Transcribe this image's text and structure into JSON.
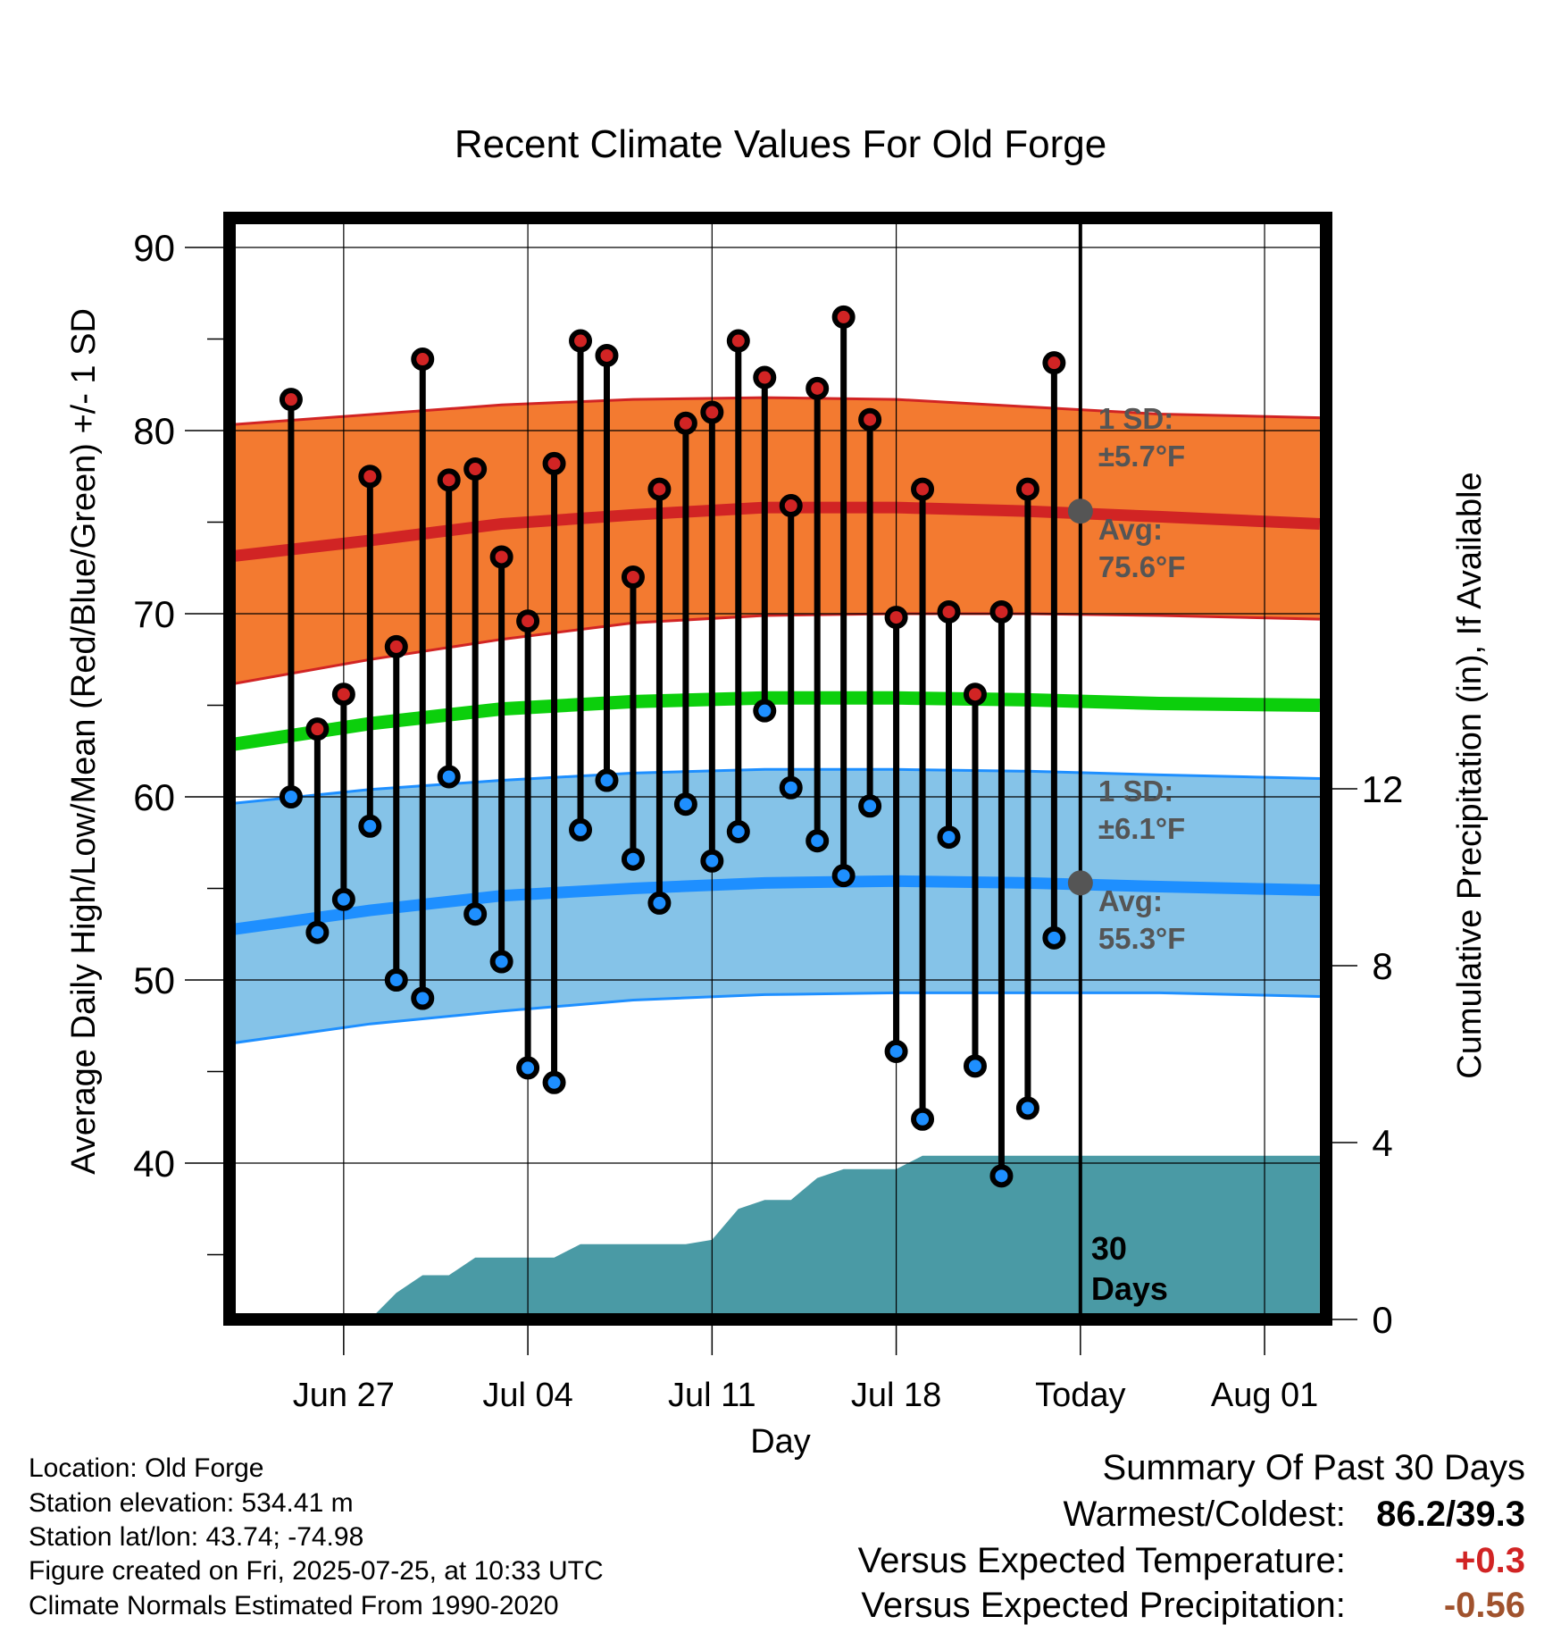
{
  "chart_data": {
    "type": "line",
    "title": "Recent Climate Values For Old Forge",
    "xlabel": "Day",
    "ylabel": "Average Daily High/Low/Mean (Red/Blue/Green) +/- 1 SD",
    "y2label": "Cumulative Precipitation (in), If Available",
    "ylim": [
      31,
      91.5
    ],
    "y2lim": [
      0,
      20
    ],
    "yticks": [
      40,
      50,
      60,
      70,
      80,
      90
    ],
    "y2ticks": [
      0,
      4,
      8,
      12
    ],
    "xlim": [
      "2025-06-23",
      "2025-08-03"
    ],
    "xticks": [
      {
        "date": "2025-06-27",
        "label": "Jun 27"
      },
      {
        "date": "2025-07-04",
        "label": "Jul 04"
      },
      {
        "date": "2025-07-11",
        "label": "Jul 11"
      },
      {
        "date": "2025-07-18",
        "label": "Jul 18"
      },
      {
        "date": "2025-07-25",
        "label": "Today"
      },
      {
        "date": "2025-08-01",
        "label": "Aug 01"
      }
    ],
    "grid": true,
    "today": "2025-07-25",
    "today_label": "30 Days",
    "dates": [
      "2025-06-24",
      "2025-06-25",
      "2025-06-26",
      "2025-06-27",
      "2025-06-28",
      "2025-06-29",
      "2025-06-30",
      "2025-07-01",
      "2025-07-02",
      "2025-07-03",
      "2025-07-04",
      "2025-07-05",
      "2025-07-06",
      "2025-07-07",
      "2025-07-08",
      "2025-07-09",
      "2025-07-10",
      "2025-07-11",
      "2025-07-12",
      "2025-07-13",
      "2025-07-14",
      "2025-07-15",
      "2025-07-16",
      "2025-07-17",
      "2025-07-18",
      "2025-07-19",
      "2025-07-20",
      "2025-07-21",
      "2025-07-22",
      "2025-07-23",
      "2025-07-24"
    ],
    "series": [
      {
        "name": "High",
        "color": "#cc2020",
        "values": [
          null,
          81.7,
          63.7,
          65.6,
          77.5,
          68.2,
          83.9,
          77.3,
          77.9,
          73.1,
          69.6,
          78.2,
          84.9,
          84.1,
          72.0,
          76.8,
          80.4,
          81.0,
          84.9,
          82.9,
          75.9,
          82.3,
          86.2,
          80.6,
          69.8,
          76.8,
          70.1,
          65.6,
          70.1,
          76.8,
          83.7
        ]
      },
      {
        "name": "Low",
        "color": "#1e8fff",
        "values": [
          null,
          60.0,
          52.6,
          54.4,
          58.4,
          50.0,
          49.0,
          61.1,
          53.6,
          51.0,
          45.2,
          44.4,
          58.2,
          60.9,
          56.6,
          54.2,
          59.6,
          56.5,
          58.1,
          64.7,
          60.5,
          57.6,
          55.7,
          59.5,
          46.1,
          42.4,
          57.8,
          45.3,
          39.3,
          43.0,
          52.3
        ]
      },
      {
        "name": "Precipitation",
        "color": "#4a9aa5",
        "values": [
          0,
          0,
          0,
          0,
          0,
          0.6,
          1.0,
          1.0,
          1.4,
          1.4,
          1.4,
          1.4,
          1.7,
          1.7,
          1.7,
          1.7,
          1.7,
          1.8,
          2.5,
          2.7,
          2.7,
          3.2,
          3.4,
          3.4,
          3.4,
          3.7,
          3.7,
          3.7,
          3.7,
          3.7,
          3.7
        ]
      }
    ],
    "normals": {
      "x": [
        -0.5,
        41.1
      ],
      "high_avg": [
        [
          -0.5,
          73.1
        ],
        [
          5,
          74.0
        ],
        [
          10,
          74.9
        ],
        [
          15,
          75.4
        ],
        [
          20,
          75.8
        ],
        [
          25,
          75.8
        ],
        [
          30,
          75.6
        ],
        [
          35,
          75.3
        ],
        [
          41.1,
          74.9
        ]
      ],
      "high_sd_upper": [
        [
          -0.5,
          80.3
        ],
        [
          10,
          81.4
        ],
        [
          15,
          81.7
        ],
        [
          20,
          81.8
        ],
        [
          25,
          81.7
        ],
        [
          30,
          81.3
        ],
        [
          35,
          80.9
        ],
        [
          41.1,
          80.7
        ]
      ],
      "high_sd_lower": [
        [
          -0.5,
          66.1
        ],
        [
          5,
          67.5
        ],
        [
          10,
          68.6
        ],
        [
          15,
          69.5
        ],
        [
          20,
          69.9
        ],
        [
          25,
          70.0
        ],
        [
          30,
          70.0
        ],
        [
          35,
          69.9
        ],
        [
          41.1,
          69.7
        ]
      ],
      "mean": [
        [
          -0.5,
          62.8
        ],
        [
          5,
          64.0
        ],
        [
          10,
          64.8
        ],
        [
          15,
          65.2
        ],
        [
          20,
          65.4
        ],
        [
          25,
          65.4
        ],
        [
          30,
          65.3
        ],
        [
          35,
          65.1
        ],
        [
          41.1,
          65.0
        ]
      ],
      "low_avg": [
        [
          -0.5,
          52.7
        ],
        [
          5,
          53.8
        ],
        [
          10,
          54.6
        ],
        [
          15,
          55.0
        ],
        [
          20,
          55.3
        ],
        [
          25,
          55.4
        ],
        [
          30,
          55.3
        ],
        [
          35,
          55.1
        ],
        [
          41.1,
          54.9
        ]
      ],
      "low_sd_upper": [
        [
          -0.5,
          59.6
        ],
        [
          5,
          60.4
        ],
        [
          10,
          60.9
        ],
        [
          15,
          61.3
        ],
        [
          20,
          61.5
        ],
        [
          25,
          61.5
        ],
        [
          30,
          61.4
        ],
        [
          35,
          61.2
        ],
        [
          41.1,
          61.0
        ]
      ],
      "low_sd_lower": [
        [
          -0.5,
          46.5
        ],
        [
          5,
          47.6
        ],
        [
          10,
          48.3
        ],
        [
          15,
          48.9
        ],
        [
          20,
          49.2
        ],
        [
          25,
          49.3
        ],
        [
          30,
          49.3
        ],
        [
          35,
          49.3
        ],
        [
          41.1,
          49.1
        ]
      ]
    },
    "annotations": {
      "high_sd": "1 SD:",
      "high_sd_value": "±5.7°F",
      "high_avg": "Avg:",
      "high_avg_value": "75.6°F",
      "low_sd": "1 SD:",
      "low_sd_value": "±6.1°F",
      "low_avg": "Avg:",
      "low_avg_value": "55.3°F"
    }
  },
  "colors": {
    "high_band": "#f37a30",
    "high_line": "#d12424",
    "low_band": "#85c3e8",
    "low_line": "#1e8fff",
    "mean_line": "#0ccf0c",
    "precip": "#4a9aa5",
    "annotation": "#555555",
    "warm_text": "#d12424",
    "precip_text": "#a0522d"
  },
  "meta": {
    "location": "Location: Old Forge",
    "elevation": "Station elevation: 534.41 m",
    "latlon": "Station lat/lon: 43.74; -74.98",
    "created": "Figure created on Fri, 2025-07-25, at 10:33 UTC",
    "normals": "Climate Normals Estimated From 1990-2020"
  },
  "summary": {
    "title": "Summary Of Past 30 Days",
    "warm_cold_label": "Warmest/Coldest:",
    "warm_cold_value": "86.2/39.3",
    "temp_label": "Versus Expected Temperature:",
    "temp_value": "+0.3",
    "precip_label": "Versus Expected Precipitation:",
    "precip_value": "-0.56"
  }
}
